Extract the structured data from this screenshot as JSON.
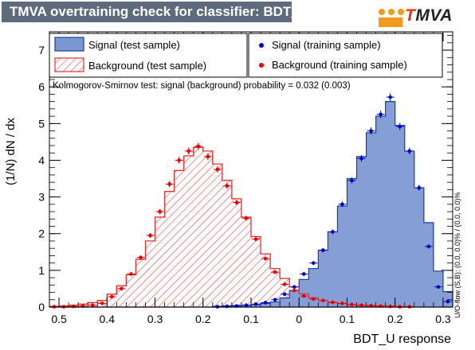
{
  "title": "TMVA overtraining check for classifier: BDT_U",
  "logo": {
    "prefix": "",
    "t": "T",
    "rest": "MVA"
  },
  "colors": {
    "signal_fill": "#7b97d2",
    "signal_line": "#1c3ea0",
    "background_line": "#e03030",
    "signal_points": "#0000cc",
    "background_points": "#ee0000",
    "title_bg": "#5e6b7d"
  },
  "chart_data": {
    "type": "histogram",
    "xlabel": "BDT_U response",
    "ylabel": "(1/N) dN / dx",
    "xlim": [
      -0.52,
      0.32
    ],
    "ylim": [
      0,
      7.5
    ],
    "x_ticks": [
      -0.5,
      -0.4,
      -0.3,
      -0.2,
      -0.1,
      0,
      0.1,
      0.2,
      0.3
    ],
    "x_tick_labels": [
      "0.5",
      "0.4",
      "0.3",
      "0.2",
      "0.1",
      "0",
      "0.1",
      "0.2",
      "0.3"
    ],
    "y_ticks": [
      0,
      1,
      2,
      3,
      4,
      5,
      6,
      7
    ],
    "bin_edges_start": -0.52,
    "bin_width": 0.02,
    "series": [
      {
        "name": "Signal (test sample)",
        "style": "filled-histogram",
        "values": [
          0,
          0,
          0,
          0,
          0,
          0,
          0,
          0,
          0,
          0,
          0,
          0,
          0,
          0,
          0,
          0,
          0,
          0.02,
          0.03,
          0.04,
          0.05,
          0.07,
          0.1,
          0.14,
          0.25,
          0.45,
          0.75,
          1.05,
          1.55,
          2.05,
          2.75,
          3.5,
          4.1,
          4.75,
          5.2,
          5.6,
          4.95,
          4.25,
          3.25,
          2.3,
          0.98,
          0.42
        ]
      },
      {
        "name": "Background (test sample)",
        "style": "hatched-histogram",
        "values": [
          0.02,
          0.03,
          0.05,
          0.08,
          0.12,
          0.18,
          0.35,
          0.58,
          0.88,
          1.3,
          1.8,
          2.45,
          3.15,
          3.72,
          4.12,
          4.35,
          4.25,
          3.9,
          3.45,
          2.95,
          2.45,
          1.92,
          1.45,
          1.05,
          0.78,
          0.55,
          0.36,
          0.25,
          0.18,
          0.12,
          0.09,
          0.06,
          0.04,
          0.03,
          0.02,
          0.02,
          0.01,
          0.01,
          0,
          0,
          0,
          0
        ]
      },
      {
        "name": "Signal (training sample)",
        "style": "points",
        "values": [
          0,
          0,
          0,
          0,
          0,
          0,
          0,
          0,
          0,
          0,
          0,
          0,
          0,
          0,
          0,
          0,
          0,
          0.01,
          0.02,
          0.03,
          0.05,
          0.08,
          0.12,
          0.2,
          0.35,
          0.55,
          0.9,
          1.2,
          1.55,
          2.05,
          2.8,
          3.45,
          4.05,
          4.8,
          5.25,
          5.72,
          4.92,
          4.25,
          3.25,
          1.65,
          0.55,
          0.15
        ]
      },
      {
        "name": "Background (training sample)",
        "style": "points",
        "values": [
          0.01,
          0.01,
          0.02,
          0.03,
          0.05,
          0.1,
          0.28,
          0.5,
          0.9,
          1.35,
          1.95,
          2.6,
          3.35,
          4.0,
          4.25,
          4.38,
          4.1,
          3.75,
          3.3,
          2.85,
          2.42,
          1.85,
          1.32,
          0.95,
          0.62,
          0.45,
          0.3,
          0.22,
          0.18,
          0.13,
          0.1,
          0.07,
          0.05,
          0.04,
          0.03,
          0.02,
          0.01,
          0.01,
          0,
          0,
          0,
          0
        ]
      }
    ],
    "annotations": {
      "ks_test": "Kolmogorov-Smirnov test: signal (background) probability = 0.032 (0.003)",
      "uo_flow": "U/O-flow (S,B): (0.0, 0.0)% / (0.0, 0.0)%"
    },
    "legend_position": "top"
  }
}
